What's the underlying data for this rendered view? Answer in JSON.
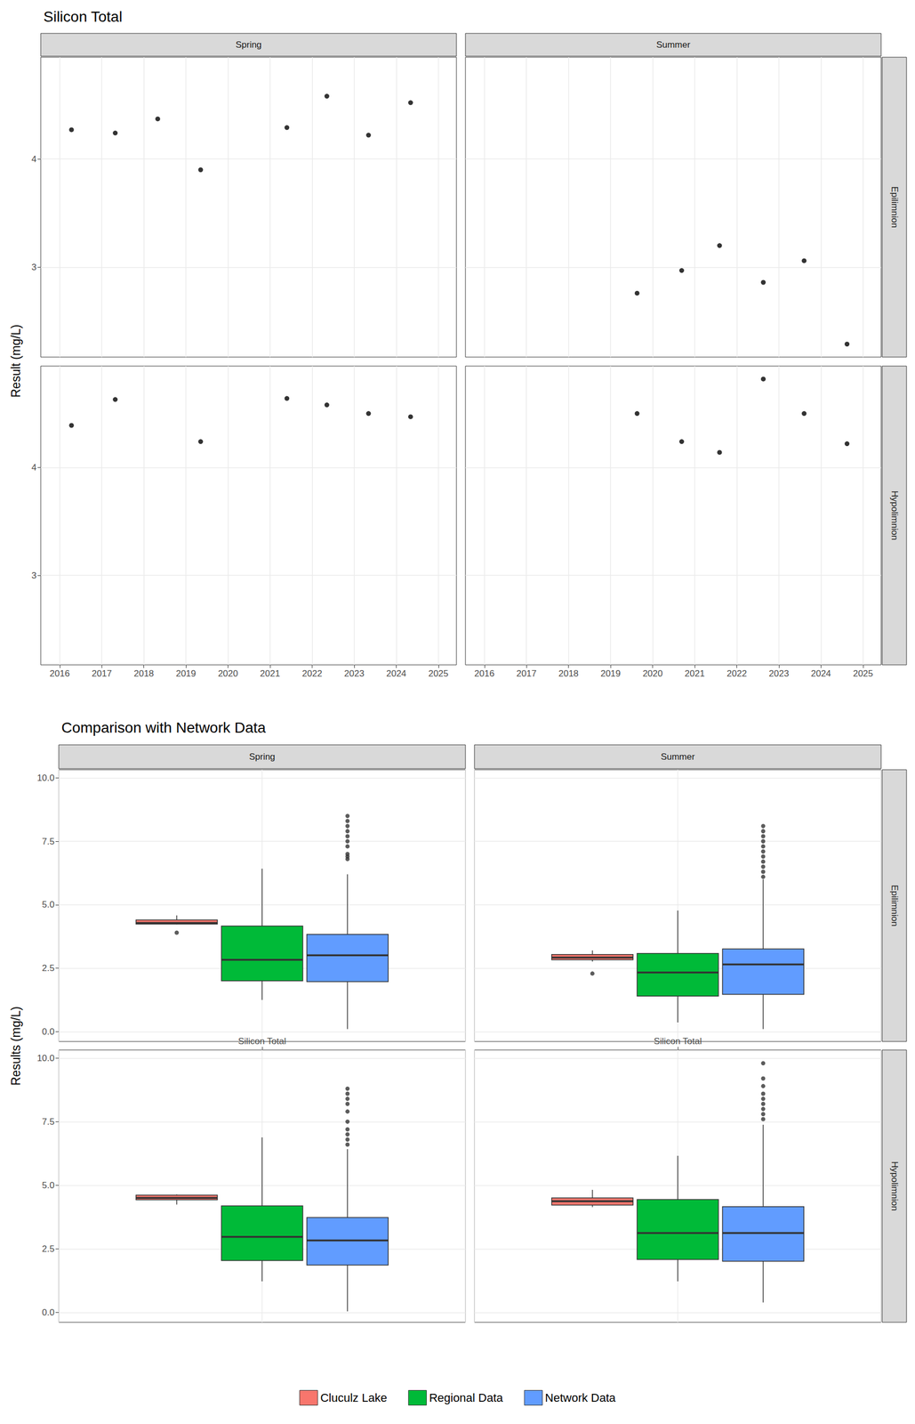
{
  "chart_data": [
    {
      "type": "scatter",
      "title": "Silicon Total",
      "y_label": "Result (mg/L)",
      "columns": [
        "Spring",
        "Summer"
      ],
      "rows": [
        "Epilimnion",
        "Hypolimnion"
      ],
      "xlim": [
        2015.55,
        2025.43
      ],
      "xticks": [
        2016,
        2017,
        2018,
        2019,
        2020,
        2021,
        2022,
        2023,
        2024,
        2025
      ],
      "ylim": [
        2.17,
        4.94
      ],
      "yticks": [
        3,
        4
      ],
      "grid": true,
      "color": "#000000",
      "marker": "circle",
      "panels": [
        {
          "column": "Spring",
          "row": "Epilimnion",
          "x": [
            2016.28,
            2017.32,
            2018.33,
            2019.35,
            2021.4,
            2022.35,
            2023.34,
            2024.34
          ],
          "values": [
            4.27,
            4.24,
            4.37,
            3.9,
            4.29,
            4.58,
            4.22,
            4.52
          ]
        },
        {
          "column": "Summer",
          "row": "Epilimnion",
          "x": [
            2019.63,
            2020.69,
            2021.59,
            2022.63,
            2023.6,
            2024.62
          ],
          "values": [
            2.76,
            2.97,
            3.2,
            2.86,
            3.06,
            2.29
          ]
        },
        {
          "column": "Spring",
          "row": "Hypolimnion",
          "x": [
            2016.28,
            2017.32,
            2019.35,
            2021.4,
            2022.35,
            2023.34,
            2024.34
          ],
          "values": [
            4.39,
            4.63,
            4.24,
            4.64,
            4.58,
            4.5,
            4.47
          ]
        },
        {
          "column": "Summer",
          "row": "Hypolimnion",
          "x": [
            2019.63,
            2020.69,
            2021.59,
            2022.63,
            2023.6,
            2024.62
          ],
          "values": [
            4.5,
            4.24,
            4.14,
            4.82,
            4.5,
            4.22
          ]
        }
      ]
    },
    {
      "type": "boxplot",
      "title": "Comparison with Network Data",
      "y_label": "Results (mg/L)",
      "columns": [
        "Spring",
        "Summer"
      ],
      "rows": [
        "Epilimnion",
        "Hypolimnion"
      ],
      "categories": [
        "Silicon Total"
      ],
      "ylim": [
        -0.39,
        10.32
      ],
      "yticks": [
        {
          "value": 0,
          "label": "0.0"
        },
        2.5,
        {
          "value": 5,
          "label": "5.0"
        },
        7.5,
        {
          "value": 10,
          "label": "10.0"
        }
      ],
      "grid": true,
      "legend": "bottom",
      "series": [
        {
          "name": "Cluculz Lake",
          "color": "#F8766D"
        },
        {
          "name": "Regional Data",
          "color": "#00BA38"
        },
        {
          "name": "Network Data",
          "color": "#619CFF"
        }
      ],
      "panels": [
        {
          "column": "Spring",
          "row": "Epilimnion",
          "boxes": [
            {
              "name": "Cluculz Lake",
              "low": 4.22,
              "q1": 4.24,
              "median": 4.28,
              "q3": 4.4,
              "high": 4.58,
              "outliers": [
                3.9
              ]
            },
            {
              "name": "Regional Data",
              "low": 1.25,
              "q1": 2.0,
              "median": 2.83,
              "q3": 4.16,
              "high": 6.42,
              "outliers": []
            },
            {
              "name": "Network Data",
              "low": 0.1,
              "q1": 1.97,
              "median": 3.01,
              "q3": 3.83,
              "high": 6.2,
              "outliers": [
                8.5,
                8.3,
                8.1,
                7.9,
                7.7,
                7.5,
                7.3,
                7.0,
                6.9,
                6.8
              ]
            }
          ]
        },
        {
          "column": "Summer",
          "row": "Epilimnion",
          "boxes": [
            {
              "name": "Cluculz Lake",
              "low": 2.76,
              "q1": 2.83,
              "median": 2.92,
              "q3": 3.04,
              "high": 3.2,
              "outliers": [
                2.29
              ]
            },
            {
              "name": "Regional Data",
              "low": 0.36,
              "q1": 1.4,
              "median": 2.33,
              "q3": 3.08,
              "high": 4.77,
              "outliers": []
            },
            {
              "name": "Network Data",
              "low": 0.1,
              "q1": 1.47,
              "median": 2.65,
              "q3": 3.26,
              "high": 6.0,
              "outliers": [
                8.1,
                7.9,
                7.7,
                7.5,
                7.3,
                7.1,
                6.9,
                6.7,
                6.5,
                6.3,
                6.1
              ]
            }
          ]
        },
        {
          "column": "Spring",
          "row": "Hypolimnion",
          "boxes": [
            {
              "name": "Cluculz Lake",
              "low": 4.24,
              "q1": 4.43,
              "median": 4.5,
              "q3": 4.61,
              "high": 4.64,
              "outliers": []
            },
            {
              "name": "Regional Data",
              "low": 1.22,
              "q1": 2.04,
              "median": 2.97,
              "q3": 4.19,
              "high": 6.88,
              "outliers": []
            },
            {
              "name": "Network Data",
              "low": 0.04,
              "q1": 1.86,
              "median": 2.83,
              "q3": 3.73,
              "high": 6.42,
              "outliers": [
                8.8,
                8.6,
                8.4,
                8.2,
                7.9,
                7.5,
                7.2,
                7.0,
                6.8,
                6.6
              ]
            }
          ]
        },
        {
          "column": "Summer",
          "row": "Hypolimnion",
          "boxes": [
            {
              "name": "Cluculz Lake",
              "low": 4.14,
              "q1": 4.22,
              "median": 4.37,
              "q3": 4.5,
              "high": 4.82,
              "outliers": []
            },
            {
              "name": "Regional Data",
              "low": 1.22,
              "q1": 2.08,
              "median": 3.12,
              "q3": 4.44,
              "high": 6.16,
              "outliers": []
            },
            {
              "name": "Network Data",
              "low": 0.39,
              "q1": 2.01,
              "median": 3.12,
              "q3": 4.16,
              "high": 7.38,
              "outliers": [
                9.8,
                9.2,
                8.9,
                8.6,
                8.4,
                8.2,
                8.0,
                7.8,
                7.6
              ]
            }
          ]
        }
      ]
    }
  ]
}
